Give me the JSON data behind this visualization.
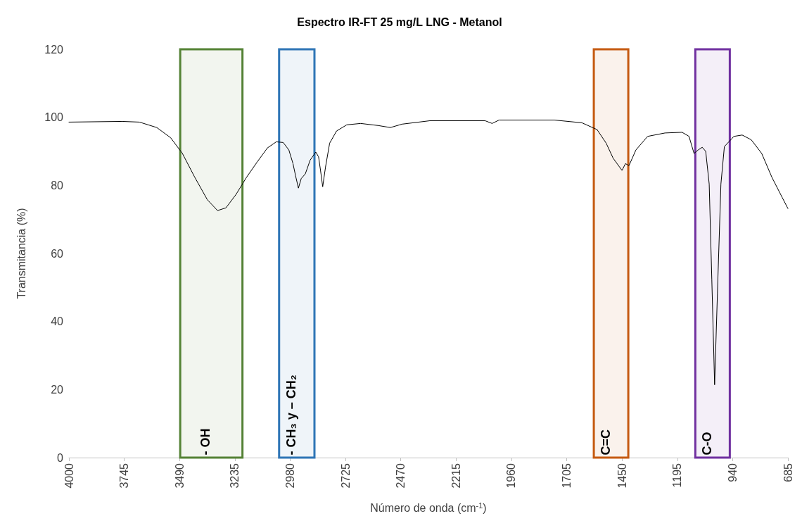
{
  "chart_data": {
    "type": "line",
    "title": "Espectro IR-FT 25 mg/L LNG - Metanol",
    "xlabel": "Número de onda (cm$^{-1}$)",
    "ylabel": "Transmitancia (%)",
    "x": [
      4000,
      3755,
      3675,
      3595,
      3531,
      3477,
      3420,
      3362,
      3315,
      3276,
      3229,
      3181,
      3133,
      3085,
      3044,
      3012,
      2986,
      2967,
      2955,
      2942,
      2929,
      2910,
      2888,
      2862,
      2849,
      2840,
      2830,
      2817,
      2798,
      2766,
      2719,
      2655,
      2575,
      2518,
      2464,
      2336,
      2081,
      2049,
      2017,
      1762,
      1635,
      1565,
      1523,
      1491,
      1450,
      1434,
      1418,
      1386,
      1332,
      1252,
      1173,
      1141,
      1118,
      1099,
      1080,
      1064,
      1048,
      1036,
      1023,
      1010,
      994,
      978,
      934,
      896,
      854,
      806,
      759,
      711,
      685
    ],
    "series": [
      {
        "color": "#000000",
        "values": [
          98.6,
          98.8,
          98.6,
          97,
          94,
          89.4,
          82.4,
          75.8,
          72.6,
          73.4,
          77.4,
          82.4,
          86.8,
          91,
          92.8,
          92.6,
          90.4,
          86.4,
          82.8,
          79.2,
          82,
          83.4,
          87.4,
          89.8,
          88.4,
          84.4,
          79.6,
          85.4,
          92.4,
          96,
          97.8,
          98.2,
          97.6,
          97,
          98,
          99,
          99,
          98.2,
          99.2,
          99.2,
          98.4,
          96.4,
          92.4,
          88,
          84.4,
          86.4,
          85.8,
          90.4,
          94.4,
          95.4,
          95.6,
          94.4,
          89.4,
          90.4,
          91.2,
          90,
          80.4,
          52.4,
          21.4,
          48.4,
          80.4,
          91.4,
          94.4,
          94.8,
          93.4,
          89.4,
          82.4,
          76.4,
          73.2
        ]
      }
    ],
    "xlim": [
      4000,
      685
    ],
    "xticks": [
      4000,
      3745,
      3490,
      3235,
      2980,
      2725,
      2470,
      2215,
      1960,
      1705,
      1450,
      1195,
      940,
      685
    ],
    "ylim": [
      0,
      120
    ],
    "yticks": [
      0,
      20,
      40,
      60,
      80,
      100,
      120
    ],
    "grid": false,
    "marker": "none",
    "line_style": "solid",
    "bands": [
      {
        "axis": "x",
        "from": 3487,
        "to": 3200,
        "label": "- OH",
        "color": "#548235"
      },
      {
        "axis": "x",
        "from": 3031,
        "to": 2868,
        "label": "- CH₃ y – CH₂",
        "color": "#2e75b6"
      },
      {
        "axis": "x",
        "from": 1580,
        "to": 1421,
        "label": "C=C",
        "color": "#c55a11"
      },
      {
        "axis": "x",
        "from": 1112,
        "to": 953,
        "label": "C-O",
        "color": "#7030a0"
      }
    ]
  }
}
